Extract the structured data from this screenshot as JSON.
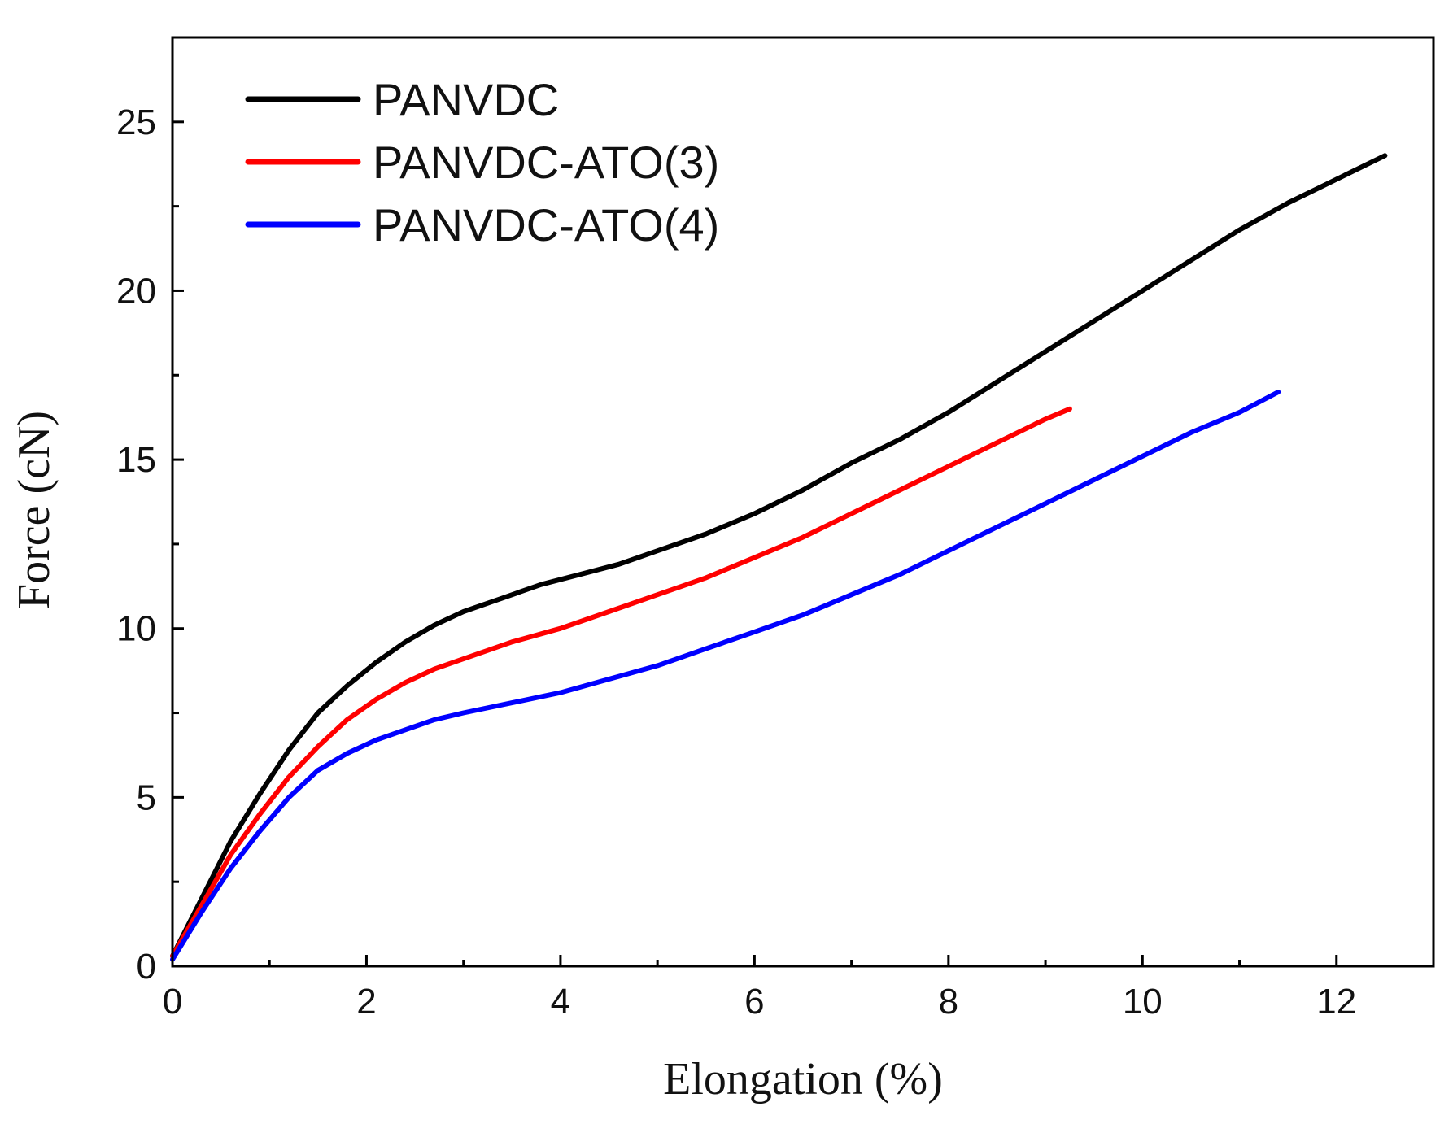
{
  "chart_data": {
    "type": "line",
    "title": "",
    "xlabel": "Elongation (%)",
    "ylabel": "Force (cN)",
    "xlim": [
      0,
      13
    ],
    "ylim": [
      0,
      27.5
    ],
    "xticks": [
      0,
      2,
      4,
      6,
      8,
      10,
      12
    ],
    "yticks": [
      0,
      5,
      10,
      15,
      20,
      25
    ],
    "grid": false,
    "legend_position": "top-left",
    "series": [
      {
        "name": "PANVDC",
        "color": "#000000",
        "x": [
          0,
          0.3,
          0.6,
          0.9,
          1.2,
          1.5,
          1.8,
          2.1,
          2.4,
          2.7,
          3.0,
          3.4,
          3.8,
          4.2,
          4.6,
          5.0,
          5.5,
          6.0,
          6.5,
          7.0,
          7.5,
          8.0,
          8.5,
          9.0,
          9.5,
          10.0,
          10.5,
          11.0,
          11.5,
          12.0,
          12.5
        ],
        "y": [
          0.3,
          2.0,
          3.7,
          5.1,
          6.4,
          7.5,
          8.3,
          9.0,
          9.6,
          10.1,
          10.5,
          10.9,
          11.3,
          11.6,
          11.9,
          12.3,
          12.8,
          13.4,
          14.1,
          14.9,
          15.6,
          16.4,
          17.3,
          18.2,
          19.1,
          20.0,
          20.9,
          21.8,
          22.6,
          23.3,
          24.0
        ]
      },
      {
        "name": "PANVDC-ATO(3)",
        "color": "#ff0000",
        "x": [
          0,
          0.3,
          0.6,
          0.9,
          1.2,
          1.5,
          1.8,
          2.1,
          2.4,
          2.7,
          3.0,
          3.5,
          4.0,
          4.5,
          5.0,
          5.5,
          6.0,
          6.5,
          7.0,
          7.5,
          8.0,
          8.5,
          9.0,
          9.25
        ],
        "y": [
          0.3,
          1.8,
          3.3,
          4.5,
          5.6,
          6.5,
          7.3,
          7.9,
          8.4,
          8.8,
          9.1,
          9.6,
          10.0,
          10.5,
          11.0,
          11.5,
          12.1,
          12.7,
          13.4,
          14.1,
          14.8,
          15.5,
          16.2,
          16.5
        ]
      },
      {
        "name": "PANVDC-ATO(4)",
        "color": "#0000ff",
        "x": [
          0,
          0.3,
          0.6,
          0.9,
          1.2,
          1.5,
          1.8,
          2.1,
          2.4,
          2.7,
          3.0,
          3.5,
          4.0,
          4.5,
          5.0,
          5.5,
          6.0,
          6.5,
          7.0,
          7.5,
          8.0,
          8.5,
          9.0,
          9.5,
          10.0,
          10.5,
          11.0,
          11.4
        ],
        "y": [
          0.2,
          1.6,
          2.9,
          4.0,
          5.0,
          5.8,
          6.3,
          6.7,
          7.0,
          7.3,
          7.5,
          7.8,
          8.1,
          8.5,
          8.9,
          9.4,
          9.9,
          10.4,
          11.0,
          11.6,
          12.3,
          13.0,
          13.7,
          14.4,
          15.1,
          15.8,
          16.4,
          17.0
        ]
      }
    ]
  }
}
